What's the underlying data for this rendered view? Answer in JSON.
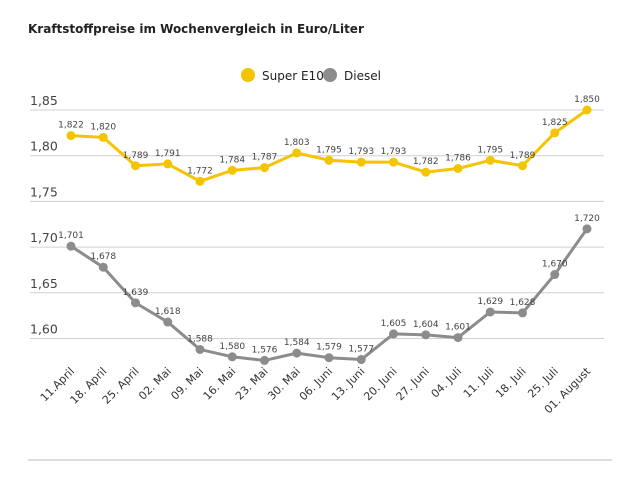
{
  "chart_data": {
    "type": "line",
    "title": "Kraftstoffpreise im Wochenvergleich in Euro/Liter",
    "categories": [
      "11.April",
      "18. April",
      "25. April",
      "02. Mai",
      "09. Mai",
      "16. Mai",
      "23. Mai",
      "30. Mai",
      "06. Juni",
      "13. Juni",
      "20. Juni",
      "27. Juni",
      "04. Juli",
      "11. Juli",
      "18. Juli",
      "25. Juli",
      "01. August"
    ],
    "series": [
      {
        "name": "Super E10",
        "color": "#f5c400",
        "values": [
          1.822,
          1.82,
          1.789,
          1.791,
          1.772,
          1.784,
          1.787,
          1.803,
          1.795,
          1.793,
          1.793,
          1.782,
          1.786,
          1.795,
          1.789,
          1.825,
          1.85
        ]
      },
      {
        "name": "Diesel",
        "color": "#8c8c8c",
        "values": [
          1.701,
          1.678,
          1.639,
          1.618,
          1.588,
          1.58,
          1.576,
          1.584,
          1.579,
          1.577,
          1.605,
          1.604,
          1.601,
          1.629,
          1.628,
          1.67,
          1.72
        ]
      }
    ],
    "yticks": [
      1.6,
      1.65,
      1.7,
      1.75,
      1.8,
      1.85
    ],
    "ylim": [
      1.55,
      1.85
    ],
    "grid": true,
    "legend": "top-center",
    "decimal_separator": ","
  }
}
